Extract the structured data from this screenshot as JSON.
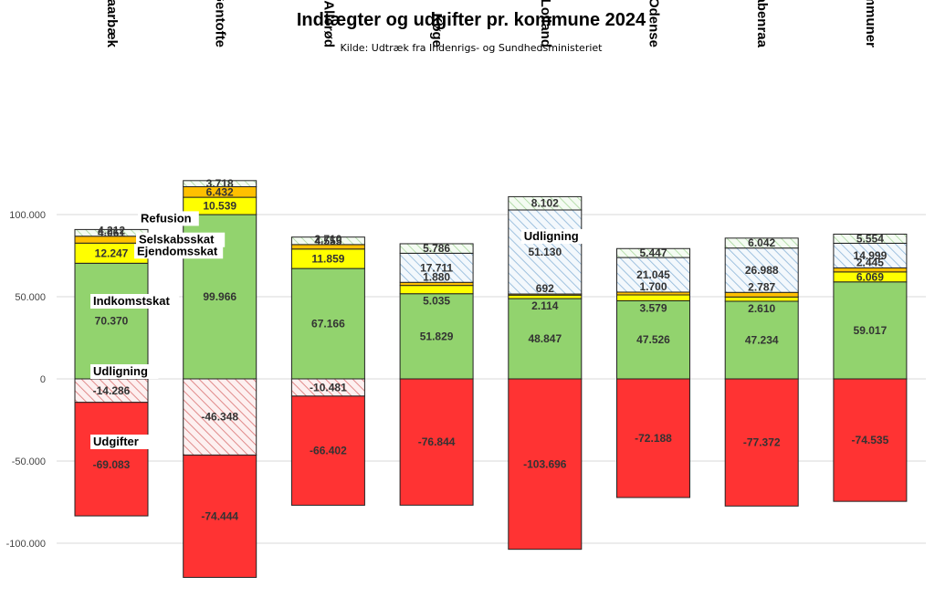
{
  "chart_data": {
    "type": "bar",
    "stacked": true,
    "title": "Indtægter og udgifter pr. kommune 2024",
    "subtitle": "Kilde: Udtræk fra Indenrigs- og Sundhedsministeriet",
    "categories": [
      "Lyngby-Taarbæk",
      "Gentofte",
      "Allerød",
      "Køge",
      "Lolland",
      "Odense",
      "Aabenraa",
      "Alle kommuner"
    ],
    "ylim": [
      -115000,
      115000
    ],
    "yticks": [
      100000,
      50000,
      0,
      -50000,
      -100000
    ],
    "ytick_labels": [
      "100.000",
      "50.000",
      "0",
      "-50.000",
      "-100.000"
    ],
    "grid": true,
    "colors": {
      "udgifter": "#ff3333",
      "udligning_neg": "#e8a0a0",
      "indkomstskat": "#92d36e",
      "ejendomsskat": "#ffff00",
      "selskabsskat": "#ffc000",
      "udligning_pos": "#8ab4d8",
      "refusion": "#c6e8c0"
    },
    "series": [
      {
        "name": "Udgifter",
        "key": "udgifter",
        "pattern": "solid",
        "values": [
          -69083,
          -74444,
          -66402,
          -76844,
          -103696,
          -72188,
          -77372,
          -74535
        ],
        "labels": [
          "-69.083",
          "-74.444",
          "-66.402",
          "-76.844",
          "-103.696",
          "-72.188",
          "-77.372",
          "-74.535"
        ]
      },
      {
        "name": "Udligning",
        "key": "udligning_neg",
        "pattern": "hatch",
        "values": [
          -14286,
          -46348,
          -10481,
          null,
          null,
          null,
          null,
          null
        ],
        "labels": [
          "-14.286",
          "-46.348",
          "-10.481",
          "",
          "",
          "",
          "",
          ""
        ]
      },
      {
        "name": "Indkomstskat",
        "key": "indkomstskat",
        "pattern": "solid",
        "values": [
          70370,
          99966,
          67166,
          51829,
          48847,
          47526,
          47234,
          59017
        ],
        "labels": [
          "70.370",
          "99.966",
          "67.166",
          "51.829",
          "48.847",
          "47.526",
          "47.234",
          "59.017"
        ]
      },
      {
        "name": "Ejendomsskat",
        "key": "ejendomsskat",
        "pattern": "solid",
        "values": [
          12247,
          10539,
          11859,
          5035,
          2114,
          3579,
          2610,
          6069
        ],
        "labels": [
          "12.247",
          "10.539",
          "11.859",
          "5.035",
          "2.114",
          "3.579",
          "2.610",
          "6.069"
        ]
      },
      {
        "name": "Selskabsskat",
        "key": "selskabsskat",
        "pattern": "solid",
        "values": [
          4212,
          6432,
          2710,
          1880,
          692,
          1700,
          2787,
          2445
        ],
        "labels": [
          "4.212",
          "6.432",
          "2.710",
          "1.880",
          "692",
          "1.700",
          "2.787",
          "2.445"
        ]
      },
      {
        "name": "Udligning",
        "key": "udligning_pos",
        "pattern": "hatch",
        "values": [
          null,
          null,
          null,
          17711,
          51130,
          21045,
          26988,
          14999
        ],
        "labels": [
          "",
          "",
          "",
          "17.711",
          "51.130",
          "21.045",
          "26.988",
          "14.999"
        ]
      },
      {
        "name": "Refusion",
        "key": "refusion",
        "pattern": "hatch",
        "values": [
          4061,
          3718,
          4555,
          5786,
          8102,
          5447,
          6042,
          5554
        ],
        "labels": [
          "4.061",
          "3.718",
          "4.555",
          "5.786",
          "8.102",
          "5.447",
          "6.042",
          "5.554"
        ]
      }
    ],
    "annotations": [
      {
        "text": "Refusion",
        "category": 0,
        "series": "refusion"
      },
      {
        "text": "Selskabsskat",
        "category": 0,
        "series": "selskabsskat"
      },
      {
        "text": "Ejendomsskat",
        "category": 0,
        "series": "ejendomsskat"
      },
      {
        "text": "Indkomstskat",
        "category": 0,
        "series": "indkomstskat"
      },
      {
        "text": "Udligning",
        "category": 0,
        "series": "udligning_neg"
      },
      {
        "text": "Udgifter",
        "category": 0,
        "series": "udgifter"
      },
      {
        "text": "Udligning",
        "category": 4,
        "series": "udligning_pos"
      }
    ]
  }
}
